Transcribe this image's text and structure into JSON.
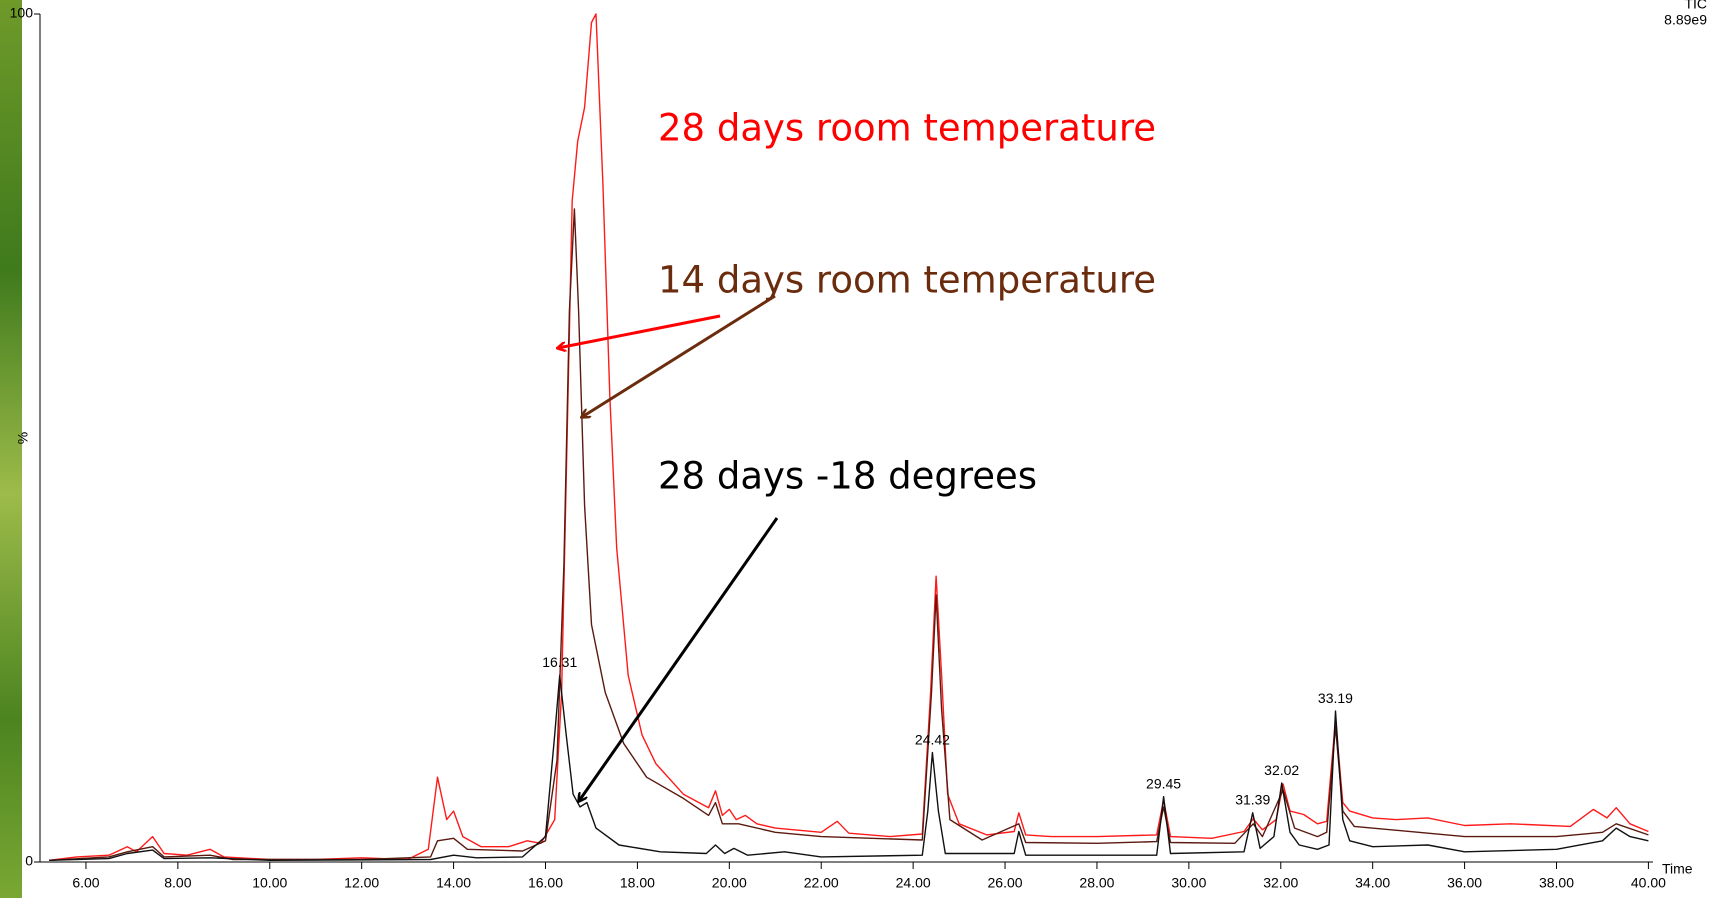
{
  "chart_data": {
    "type": "line",
    "y_label": "%",
    "x_label": "Time",
    "trace_label": "TIC",
    "intensity_label": "8.89e9",
    "xlim": [
      5,
      40.1
    ],
    "ylim": [
      0,
      100
    ],
    "xticks": [
      {
        "value": 6,
        "label": "6.00"
      },
      {
        "value": 8,
        "label": "8.00"
      },
      {
        "value": 10,
        "label": "10.00"
      },
      {
        "value": 12,
        "label": "12.00"
      },
      {
        "value": 14,
        "label": "14.00"
      },
      {
        "value": 16,
        "label": "16.00"
      },
      {
        "value": 18,
        "label": "18.00"
      },
      {
        "value": 20,
        "label": "20.00"
      },
      {
        "value": 22,
        "label": "22.00"
      },
      {
        "value": 24,
        "label": "24.00"
      },
      {
        "value": 26,
        "label": "26.00"
      },
      {
        "value": 28,
        "label": "28.00"
      },
      {
        "value": 30,
        "label": "30.00"
      },
      {
        "value": 32,
        "label": "32.00"
      },
      {
        "value": 34,
        "label": "34.00"
      },
      {
        "value": 36,
        "label": "36.00"
      },
      {
        "value": 38,
        "label": "38.00"
      },
      {
        "value": 40,
        "label": "40.00"
      }
    ],
    "yticks": [
      0,
      100
    ],
    "series": [
      {
        "name": "28 days room temperature",
        "color": "#ff1a1a",
        "x": [
          5.2,
          5.8,
          6.5,
          6.9,
          7.1,
          7.45,
          7.7,
          8.2,
          8.7,
          9.0,
          10,
          11,
          12,
          13,
          13.45,
          13.65,
          13.85,
          14.0,
          14.2,
          14.6,
          15.2,
          15.6,
          15.9,
          16.2,
          16.35,
          16.47,
          16.58,
          16.7,
          16.85,
          17.0,
          17.1,
          17.25,
          17.4,
          17.55,
          17.8,
          18.1,
          18.4,
          19.0,
          19.55,
          19.7,
          19.85,
          20.0,
          20.15,
          20.35,
          20.6,
          21,
          22,
          22.35,
          22.6,
          23.5,
          24.2,
          24.38,
          24.5,
          24.62,
          24.75,
          25,
          25.6,
          26.2,
          26.3,
          26.45,
          27,
          28,
          29.3,
          29.45,
          29.6,
          30.5,
          31.2,
          31.4,
          31.6,
          31.9,
          32.05,
          32.2,
          32.5,
          32.8,
          33.0,
          33.19,
          33.35,
          33.5,
          34,
          34.5,
          35.2,
          36,
          37,
          38.3,
          38.8,
          39.1,
          39.3,
          39.6,
          40.0
        ],
        "values": [
          0.2,
          0.6,
          0.8,
          1.8,
          1.2,
          3.0,
          1.0,
          0.8,
          1.5,
          0.6,
          0.3,
          0.3,
          0.5,
          0.3,
          1.5,
          10,
          5,
          6,
          3,
          1.8,
          1.8,
          2.5,
          2.2,
          5,
          20,
          50,
          78,
          85,
          89,
          99,
          100,
          80,
          55,
          37,
          22,
          15,
          11.6,
          8,
          6.4,
          8.4,
          5.5,
          6.2,
          5,
          5.5,
          4.5,
          4,
          3.5,
          4.8,
          3.4,
          3,
          3.3,
          20,
          33.7,
          22,
          8,
          4.5,
          3.2,
          3.6,
          5.8,
          3.2,
          3,
          3,
          3.2,
          7.3,
          3,
          2.8,
          3.6,
          5.1,
          3.8,
          5,
          9.2,
          6,
          5.6,
          4.5,
          4.8,
          16.8,
          7,
          6,
          5.2,
          5,
          5.2,
          4.3,
          4.5,
          4.2,
          6.2,
          5.2,
          6.4,
          4.5,
          3.6
        ]
      },
      {
        "name": "14 days room temperature",
        "color": "#5a1a10",
        "x": [
          5.2,
          6.5,
          6.9,
          7.45,
          7.7,
          8.7,
          9.2,
          12,
          13.5,
          13.65,
          14.0,
          14.3,
          15.5,
          16.0,
          16.25,
          16.4,
          16.52,
          16.63,
          16.72,
          16.85,
          17.0,
          17.3,
          17.7,
          18.2,
          19,
          19.55,
          19.7,
          19.85,
          20.2,
          21,
          22,
          24.2,
          24.4,
          24.5,
          24.62,
          24.8,
          25.5,
          26.3,
          26.45,
          28,
          29.3,
          29.45,
          29.6,
          31,
          31.4,
          31.6,
          32.05,
          32.3,
          32.8,
          33.0,
          33.19,
          33.35,
          33.6,
          35,
          36,
          38,
          39,
          39.3,
          40
        ],
        "values": [
          0.2,
          0.6,
          1.2,
          1.8,
          0.6,
          0.8,
          0.3,
          0.3,
          0.6,
          2.5,
          2.8,
          1.5,
          1.3,
          2.5,
          12,
          35,
          65,
          77,
          65,
          42,
          28,
          20,
          14,
          10,
          7.5,
          5.5,
          7,
          4.5,
          4.5,
          3.5,
          3,
          2.6,
          20,
          31.5,
          18,
          5,
          2.6,
          4.5,
          2.3,
          2.2,
          2.4,
          6.5,
          2.3,
          2.2,
          4.5,
          3,
          8.5,
          4,
          3,
          3.5,
          16,
          6,
          4.2,
          3.5,
          3,
          3,
          3.5,
          4.5,
          3.2
        ]
      },
      {
        "name": "28 days -18 degrees",
        "color": "#111111",
        "x": [
          5.2,
          6.5,
          6.9,
          7.45,
          7.7,
          8.7,
          10,
          13.5,
          14,
          14.5,
          15.5,
          16.0,
          16.2,
          16.31,
          16.45,
          16.6,
          16.75,
          16.9,
          17.1,
          17.6,
          18.5,
          19.5,
          19.7,
          19.9,
          20.1,
          20.4,
          21.2,
          22,
          24.2,
          24.32,
          24.42,
          24.55,
          24.7,
          26.2,
          26.3,
          26.45,
          28,
          29.3,
          29.45,
          29.6,
          31.2,
          31.39,
          31.55,
          31.85,
          32.02,
          32.2,
          32.4,
          32.8,
          33.05,
          33.19,
          33.35,
          33.5,
          34,
          35.2,
          36,
          38,
          39,
          39.3,
          39.6,
          40
        ],
        "values": [
          0.2,
          0.4,
          1.0,
          1.4,
          0.4,
          0.5,
          0.2,
          0.3,
          0.8,
          0.5,
          0.6,
          3,
          15,
          22,
          15,
          8,
          6.5,
          7,
          4,
          2,
          1.2,
          1.0,
          2,
          1,
          1.6,
          0.8,
          1.2,
          0.6,
          0.8,
          6,
          12.9,
          6,
          1,
          1.0,
          3.6,
          0.8,
          0.8,
          0.8,
          7.7,
          1,
          1.2,
          5.8,
          1.6,
          3,
          9.3,
          3.5,
          2,
          1.5,
          2,
          17.8,
          5,
          2.5,
          1.8,
          2,
          1.2,
          1.5,
          2.5,
          4,
          3,
          2.5
        ]
      }
    ],
    "peaks": [
      {
        "x": 16.31,
        "y": 22
      },
      {
        "x": 24.42,
        "y": 12.9
      },
      {
        "x": 29.45,
        "y": 7.7
      },
      {
        "x": 31.39,
        "y": 5.8
      },
      {
        "x": 32.02,
        "y": 9.3
      },
      {
        "x": 33.19,
        "y": 17.8
      }
    ]
  }
}
